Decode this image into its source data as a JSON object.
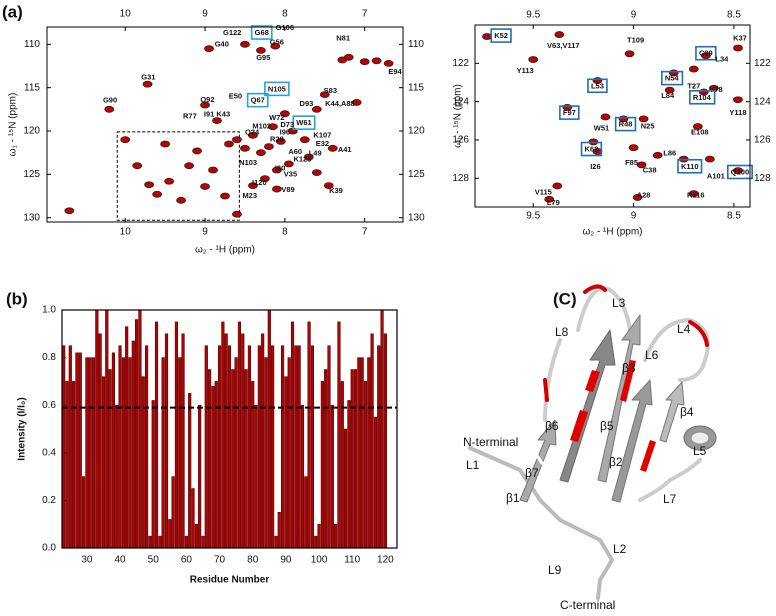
{
  "panel_labels": [
    "(a)",
    "(b)",
    "(C)"
  ],
  "chart_data": [
    {
      "type": "scatter",
      "xlabel": "ω₂ - ¹H  (ppm)",
      "ylabel": "ω₁ - ¹⁵N (ppm)",
      "xlim": [
        10.98,
        6.52
      ],
      "ylim": [
        108,
        130.5
      ],
      "xticks": [
        10,
        9,
        8,
        7
      ],
      "yticks": [
        110,
        115,
        120,
        125,
        130
      ],
      "box_color": "#2aa0d8",
      "highlight_box": {
        "x": [
          10.1,
          8.57
        ],
        "y": [
          120.1,
          130.3
        ]
      },
      "series": [
        {
          "color": "#c00000",
          "x": [
            10.7,
            10.2,
            9.72,
            9.0,
            8.85,
            8.95,
            8.5,
            8.3,
            8.12,
            7.28,
            7.2,
            7.0,
            6.85,
            6.7,
            7.5,
            7.6,
            7.1,
            8.0,
            8.15,
            8.4,
            8.6,
            8.7,
            8.5,
            8.3,
            8.2,
            8.05,
            7.9,
            7.75,
            7.7,
            7.95,
            8.1,
            8.25,
            8.4,
            8.1,
            7.45,
            9.2,
            9.45,
            9.6,
            9.3,
            9.0,
            8.75,
            8.6,
            9.85,
            10.0,
            9.5,
            9.1,
            9.7,
            7.4,
            7.6,
            8.9
          ],
          "y": [
            129.2,
            117.5,
            114.6,
            117.0,
            118.8,
            110.5,
            110.0,
            110.7,
            110.2,
            111.8,
            111.5,
            112.0,
            111.9,
            112.2,
            115.8,
            117.5,
            116.7,
            118.0,
            119.5,
            120.5,
            121.0,
            121.5,
            122.0,
            122.5,
            121.8,
            121.2,
            120.0,
            121.0,
            123.0,
            123.8,
            124.5,
            125.5,
            126.3,
            126.7,
            126.3,
            124.0,
            125.8,
            127.3,
            128.0,
            126.4,
            127.5,
            129.6,
            124.0,
            121.0,
            121.5,
            122.3,
            126.2,
            122.0,
            124.8,
            124.5
          ]
        }
      ],
      "annotations": [
        {
          "text": "G122",
          "x": 8.66,
          "y": 108.7,
          "boxed": false
        },
        {
          "text": "G68",
          "x": 8.29,
          "y": 108.7,
          "boxed": true
        },
        {
          "text": "G106",
          "x": 8.0,
          "y": 108.1,
          "boxed": false
        },
        {
          "text": "G40",
          "x": 8.79,
          "y": 110.0,
          "boxed": false
        },
        {
          "text": "G56",
          "x": 8.1,
          "y": 109.8,
          "boxed": false
        },
        {
          "text": "N81",
          "x": 7.27,
          "y": 109.3,
          "boxed": false
        },
        {
          "text": "G95",
          "x": 8.27,
          "y": 111.6,
          "boxed": false
        },
        {
          "text": "G31",
          "x": 9.71,
          "y": 113.8,
          "boxed": false
        },
        {
          "text": "E94",
          "x": 6.62,
          "y": 113.2,
          "boxed": false
        },
        {
          "text": "G90",
          "x": 10.19,
          "y": 116.5,
          "boxed": false
        },
        {
          "text": "Q92",
          "x": 8.97,
          "y": 116.4,
          "boxed": false
        },
        {
          "text": "E50",
          "x": 8.62,
          "y": 116.0,
          "boxed": false
        },
        {
          "text": "N105",
          "x": 8.1,
          "y": 115.2,
          "boxed": true
        },
        {
          "text": "S83",
          "x": 7.43,
          "y": 115.4,
          "boxed": false
        },
        {
          "text": "Q67",
          "x": 8.34,
          "y": 116.5,
          "boxed": true
        },
        {
          "text": "D93",
          "x": 7.73,
          "y": 116.9,
          "boxed": false
        },
        {
          "text": "K44,A88",
          "x": 7.31,
          "y": 116.9,
          "boxed": false
        },
        {
          "text": "R77",
          "x": 9.19,
          "y": 118.3,
          "boxed": false
        },
        {
          "text": "I91 K43",
          "x": 8.85,
          "y": 118.1,
          "boxed": false
        },
        {
          "text": "W72",
          "x": 8.1,
          "y": 118.5,
          "boxed": false
        },
        {
          "text": "W61",
          "x": 7.76,
          "y": 119.1,
          "boxed": true
        },
        {
          "text": "M102",
          "x": 8.29,
          "y": 119.5,
          "boxed": false
        },
        {
          "text": "D73",
          "x": 7.97,
          "y": 119.3,
          "boxed": false
        },
        {
          "text": "K107",
          "x": 7.53,
          "y": 120.5,
          "boxed": false
        },
        {
          "text": "Q24",
          "x": 8.41,
          "y": 120.2,
          "boxed": false
        },
        {
          "text": "I96",
          "x": 8.0,
          "y": 120.2,
          "boxed": false
        },
        {
          "text": "R29",
          "x": 8.1,
          "y": 121.0,
          "boxed": false
        },
        {
          "text": "E32",
          "x": 7.53,
          "y": 121.5,
          "boxed": false
        },
        {
          "text": "A41",
          "x": 7.25,
          "y": 122.2,
          "boxed": false
        },
        {
          "text": "A60",
          "x": 7.87,
          "y": 122.4,
          "boxed": false
        },
        {
          "text": "L49",
          "x": 7.62,
          "y": 122.6,
          "boxed": false
        },
        {
          "text": "K123",
          "x": 7.78,
          "y": 123.3,
          "boxed": false
        },
        {
          "text": "N103",
          "x": 8.46,
          "y": 123.7,
          "boxed": false
        },
        {
          "text": "I30",
          "x": 8.06,
          "y": 124.3,
          "boxed": false
        },
        {
          "text": "V35",
          "x": 7.93,
          "y": 125.0,
          "boxed": false
        },
        {
          "text": "I120",
          "x": 8.32,
          "y": 126.0,
          "boxed": false
        },
        {
          "text": "V89",
          "x": 7.96,
          "y": 126.8,
          "boxed": false
        },
        {
          "text": "K39",
          "x": 7.36,
          "y": 126.9,
          "boxed": false
        },
        {
          "text": "M23",
          "x": 8.44,
          "y": 127.5,
          "boxed": false
        }
      ]
    },
    {
      "type": "scatter",
      "xlabel": "ω₂ - ¹H  (ppm)",
      "ylabel": "ω₁ - ¹⁵N (ppm)",
      "xlim": [
        9.79,
        8.42
      ],
      "ylim": [
        120,
        129.5
      ],
      "xticks": [
        9.5,
        9.0,
        8.5
      ],
      "yticks": [
        122,
        124,
        126,
        128
      ],
      "box_color": "#1f6fb8",
      "series": [
        {
          "color": "#c00000",
          "x": [
            9.73,
            9.37,
            9.02,
            8.64,
            8.48,
            9.5,
            9.18,
            8.8,
            8.7,
            8.6,
            8.82,
            8.65,
            8.48,
            9.33,
            9.14,
            9.05,
            8.95,
            8.68,
            9.2,
            9.18,
            9.0,
            8.88,
            8.75,
            8.62,
            8.96,
            8.48,
            9.38,
            9.42,
            8.98,
            8.7
          ],
          "y": [
            120.6,
            120.5,
            121.5,
            121.6,
            121.2,
            121.8,
            122.9,
            122.5,
            122.3,
            123.3,
            123.4,
            123.5,
            123.9,
            124.3,
            124.8,
            124.9,
            124.9,
            125.3,
            126.1,
            126.6,
            126.4,
            126.8,
            127.0,
            127.0,
            127.3,
            127.6,
            128.4,
            129.1,
            129.0,
            128.8
          ]
        }
      ],
      "annotations": [
        {
          "text": "K52",
          "x": 9.66,
          "y": 120.58,
          "boxed": true
        },
        {
          "text": "V63,V117",
          "x": 9.35,
          "y": 121.1,
          "boxed": false
        },
        {
          "text": "T109",
          "x": 8.99,
          "y": 120.8,
          "boxed": false
        },
        {
          "text": "C99",
          "x": 8.64,
          "y": 121.5,
          "boxed": true
        },
        {
          "text": "K37",
          "x": 8.47,
          "y": 120.7,
          "boxed": false
        },
        {
          "text": "Y113",
          "x": 9.54,
          "y": 122.4,
          "boxed": false
        },
        {
          "text": "L34",
          "x": 8.56,
          "y": 121.8,
          "boxed": false
        },
        {
          "text": "L53",
          "x": 9.18,
          "y": 123.2,
          "boxed": true
        },
        {
          "text": "N54",
          "x": 8.81,
          "y": 122.8,
          "boxed": true
        },
        {
          "text": "T27",
          "x": 8.7,
          "y": 123.2,
          "boxed": false
        },
        {
          "text": "V78",
          "x": 8.59,
          "y": 123.4,
          "boxed": false
        },
        {
          "text": "L84",
          "x": 8.83,
          "y": 123.7,
          "boxed": false
        },
        {
          "text": "R104",
          "x": 8.66,
          "y": 123.8,
          "boxed": true
        },
        {
          "text": "Y118",
          "x": 8.48,
          "y": 124.6,
          "boxed": false
        },
        {
          "text": "F97",
          "x": 9.32,
          "y": 124.6,
          "boxed": true
        },
        {
          "text": "R48",
          "x": 9.04,
          "y": 125.2,
          "boxed": true
        },
        {
          "text": "W51",
          "x": 9.16,
          "y": 125.4,
          "boxed": false
        },
        {
          "text": "N25",
          "x": 8.93,
          "y": 125.3,
          "boxed": false
        },
        {
          "text": "K62",
          "x": 9.21,
          "y": 126.5,
          "boxed": true
        },
        {
          "text": "E108",
          "x": 8.67,
          "y": 125.6,
          "boxed": false
        },
        {
          "text": "L86",
          "x": 8.82,
          "y": 126.7,
          "boxed": false
        },
        {
          "text": "I26",
          "x": 9.19,
          "y": 127.4,
          "boxed": false
        },
        {
          "text": "F85",
          "x": 9.01,
          "y": 127.2,
          "boxed": false
        },
        {
          "text": "K110",
          "x": 8.72,
          "y": 127.4,
          "boxed": true
        },
        {
          "text": "C38",
          "x": 8.92,
          "y": 127.6,
          "boxed": false
        },
        {
          "text": "A101",
          "x": 8.59,
          "y": 127.9,
          "boxed": false
        },
        {
          "text": "Q100",
          "x": 8.47,
          "y": 127.7,
          "boxed": true
        },
        {
          "text": "V115",
          "x": 9.45,
          "y": 128.75,
          "boxed": false
        },
        {
          "text": "L79",
          "x": 9.4,
          "y": 129.3,
          "boxed": false
        },
        {
          "text": "A28",
          "x": 8.95,
          "y": 128.9,
          "boxed": false
        },
        {
          "text": "R116",
          "x": 8.69,
          "y": 128.9,
          "boxed": false
        }
      ]
    },
    {
      "type": "bar",
      "xlabel": "Residue Number",
      "ylabel": "Intensity (I/I₀)",
      "color": "#b50000",
      "reference_line": 0.59,
      "xlim": [
        22.5,
        123.5
      ],
      "ylim": [
        0,
        1.0
      ],
      "xticks": [
        30,
        40,
        50,
        60,
        70,
        80,
        90,
        100,
        110,
        120
      ],
      "yticks": [
        {
          "value": 0,
          "label": "0.0"
        },
        {
          "value": 0.2,
          "label": "0.2"
        },
        {
          "value": 0.4,
          "label": "0.4"
        },
        {
          "value": 0.6,
          "label": "0.6"
        },
        {
          "value": 0.8,
          "label": "0.8"
        },
        {
          "value": 1.0,
          "label": "1.0"
        }
      ],
      "x": [
        23,
        24,
        25,
        26,
        27,
        28,
        29,
        30,
        31,
        32,
        33,
        34,
        35,
        36,
        37,
        38,
        39,
        40,
        41,
        42,
        43,
        44,
        45,
        46,
        47,
        48,
        49,
        50,
        51,
        52,
        53,
        54,
        55,
        56,
        57,
        58,
        59,
        60,
        61,
        62,
        63,
        64,
        65,
        66,
        67,
        68,
        69,
        70,
        71,
        72,
        73,
        74,
        75,
        76,
        77,
        78,
        79,
        80,
        81,
        82,
        83,
        84,
        85,
        86,
        87,
        88,
        89,
        90,
        91,
        92,
        93,
        94,
        95,
        96,
        97,
        98,
        99,
        100,
        101,
        102,
        103,
        104,
        105,
        106,
        107,
        108,
        109,
        110,
        111,
        112,
        113,
        114,
        115,
        116,
        117,
        118,
        119,
        120
      ],
      "values": [
        0.85,
        0.7,
        0.85,
        0.7,
        0.82,
        0.82,
        0.3,
        0.8,
        0.8,
        0.8,
        1.0,
        0.9,
        0.72,
        1.0,
        0.75,
        0.82,
        0.6,
        0.85,
        0.8,
        0.93,
        0.8,
        0.87,
        0.96,
        1.0,
        0.72,
        0.85,
        0.05,
        0.62,
        0.95,
        0.05,
        0.8,
        0.9,
        0.12,
        0.3,
        0.95,
        0.8,
        0.9,
        0.05,
        0.65,
        0.25,
        0.1,
        0.6,
        0.05,
        0.85,
        0.75,
        0.68,
        0.7,
        0.85,
        0.95,
        0.9,
        0.85,
        0.75,
        0.8,
        0.95,
        0.9,
        0.75,
        0.85,
        0.7,
        0.6,
        0.85,
        0.9,
        0.8,
        1.0,
        0.85,
        0.05,
        0.15,
        0.85,
        0.72,
        0.8,
        0.95,
        0.85,
        0.85,
        0.6,
        0.3,
        0.95,
        0.85,
        0.05,
        0.1,
        0.7,
        0.75,
        0.85,
        0.6,
        0.1,
        0.95,
        0.7,
        0.5,
        0.62,
        0.75,
        0.75,
        0.8,
        0.8,
        0.7,
        0.8,
        0.9,
        0.55,
        0.85,
        1.0,
        0.9
      ]
    }
  ],
  "structure": {
    "labels": [
      "L3",
      "L8",
      "L4",
      "L6",
      "β3",
      "β6",
      "β5",
      "β4",
      "L5",
      "N-terminal",
      "L1",
      "β7",
      "β2",
      "β1",
      "L7",
      "L2",
      "L9",
      "C-terminal"
    ]
  }
}
